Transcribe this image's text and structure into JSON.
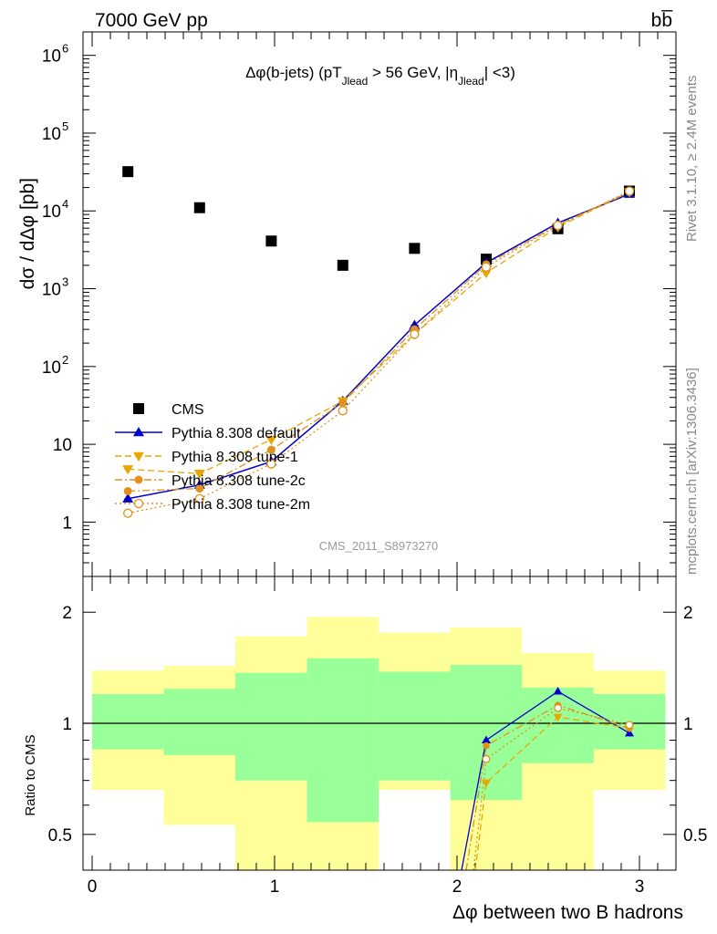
{
  "header": {
    "left": "7000 GeV pp",
    "right": "bb̅"
  },
  "side_labels": {
    "rivet": "Rivet 3.1.10, ≥ 2.4M events",
    "mcplots": "mcplots.cern.ch [arXiv:1306.3436]"
  },
  "chart_data": [
    {
      "type": "scatter",
      "panel": "main",
      "title_parts": {
        "a": "Δφ(b-jets) (pT",
        "sub1": "Jlead",
        "b": " >  56 GeV, |η",
        "sub2": "Jlead",
        "c": "| <3)"
      },
      "watermark": "CMS_2011_S8973270",
      "ylabel": "dσ / dΔφ [pb]",
      "y_scale": "log",
      "xlim": [
        -0.05,
        3.2
      ],
      "ylim": [
        0.2,
        2000000
      ],
      "ytick_labels": [
        {
          "v": 1,
          "t": "1"
        },
        {
          "v": 10,
          "t": "10"
        },
        {
          "v": 100,
          "b": "10",
          "e": "2"
        },
        {
          "v": 1000,
          "b": "10",
          "e": "3"
        },
        {
          "v": 10000,
          "b": "10",
          "e": "4"
        },
        {
          "v": 100000,
          "b": "10",
          "e": "5"
        },
        {
          "v": 1000000,
          "b": "10",
          "e": "6"
        }
      ],
      "bin_edges": [
        0,
        0.393,
        0.785,
        1.178,
        1.571,
        1.963,
        2.356,
        2.749,
        3.142
      ],
      "x": [
        0.196,
        0.589,
        0.982,
        1.374,
        1.767,
        2.16,
        2.553,
        2.945
      ],
      "series": [
        {
          "name": "CMS",
          "color": "#000000",
          "marker": "square",
          "line": "none",
          "values": [
            32000,
            11000,
            4100,
            2000,
            3300,
            2400,
            5900,
            18000
          ]
        },
        {
          "name": "Pythia 8.308 default",
          "color": "#0000cc",
          "marker": "triangle-up",
          "line": "solid",
          "values": [
            2.0,
            3.0,
            6.0,
            36,
            340,
            2150,
            7000,
            16500
          ]
        },
        {
          "name": "Pythia 8.308 tune-1",
          "color": "#e8a600",
          "marker": "triangle-down",
          "line": "dashed",
          "values": [
            4.8,
            4.2,
            11.5,
            36,
            260,
            1600,
            6200,
            17500
          ]
        },
        {
          "name": "Pythia 8.308 tune-2c",
          "color": "#e0921c",
          "marker": "circle",
          "line": "dashdot",
          "values": [
            2.5,
            2.7,
            8.5,
            34,
            300,
            2050,
            6600,
            17500
          ]
        },
        {
          "name": "Pythia 8.308 tune-2m",
          "color": "#e0921c",
          "marker": "circle-open",
          "line": "dotted",
          "values": [
            1.3,
            2.0,
            5.6,
            27,
            260,
            1900,
            6500,
            18000
          ]
        }
      ]
    },
    {
      "type": "line",
      "panel": "ratio",
      "ylabel": "Ratio to CMS",
      "xlabel": "Δφ between two B hadrons",
      "y_scale": "log",
      "xlim": [
        -0.05,
        3.2
      ],
      "ylim": [
        0.4,
        2.5
      ],
      "ytick_labels": [
        {
          "v": 0.5,
          "t": "0.5"
        },
        {
          "v": 1,
          "t": "1"
        },
        {
          "v": 2,
          "t": "2"
        }
      ],
      "xtick_labels": [
        {
          "v": 0,
          "t": "0"
        },
        {
          "v": 1,
          "t": "1"
        },
        {
          "v": 2,
          "t": "2"
        },
        {
          "v": 3,
          "t": "3"
        }
      ],
      "reference_line": 1,
      "bands": {
        "outer": {
          "color": "#ffff99",
          "lo": [
            0.66,
            0.53,
            0.38,
            0.28,
            0.66,
            0.38,
            0.38,
            0.66
          ],
          "hi": [
            1.39,
            1.43,
            1.72,
            1.94,
            1.76,
            1.82,
            1.55,
            1.39
          ]
        },
        "inner": {
          "color": "#99ff99",
          "lo": [
            0.85,
            0.82,
            0.7,
            0.54,
            0.7,
            0.62,
            0.78,
            0.85
          ],
          "hi": [
            1.2,
            1.24,
            1.37,
            1.5,
            1.38,
            1.44,
            1.25,
            1.2
          ]
        }
      },
      "x": [
        2.16,
        2.553,
        2.945
      ],
      "series": [
        {
          "name": "Pythia 8.308 default",
          "values": [
            0.9,
            1.22,
            0.94
          ],
          "entry": [
            2.025,
            0.4
          ]
        },
        {
          "name": "Pythia 8.308 tune-1",
          "values": [
            0.69,
            1.04,
            0.97
          ],
          "entry": [
            2.1,
            0.4
          ]
        },
        {
          "name": "Pythia 8.308 tune-2c",
          "values": [
            0.87,
            1.12,
            0.97
          ],
          "entry": [
            2.05,
            0.4
          ]
        },
        {
          "name": "Pythia 8.308 tune-2m",
          "values": [
            0.8,
            1.1,
            0.99
          ],
          "entry": [
            2.09,
            0.4
          ]
        }
      ]
    }
  ]
}
